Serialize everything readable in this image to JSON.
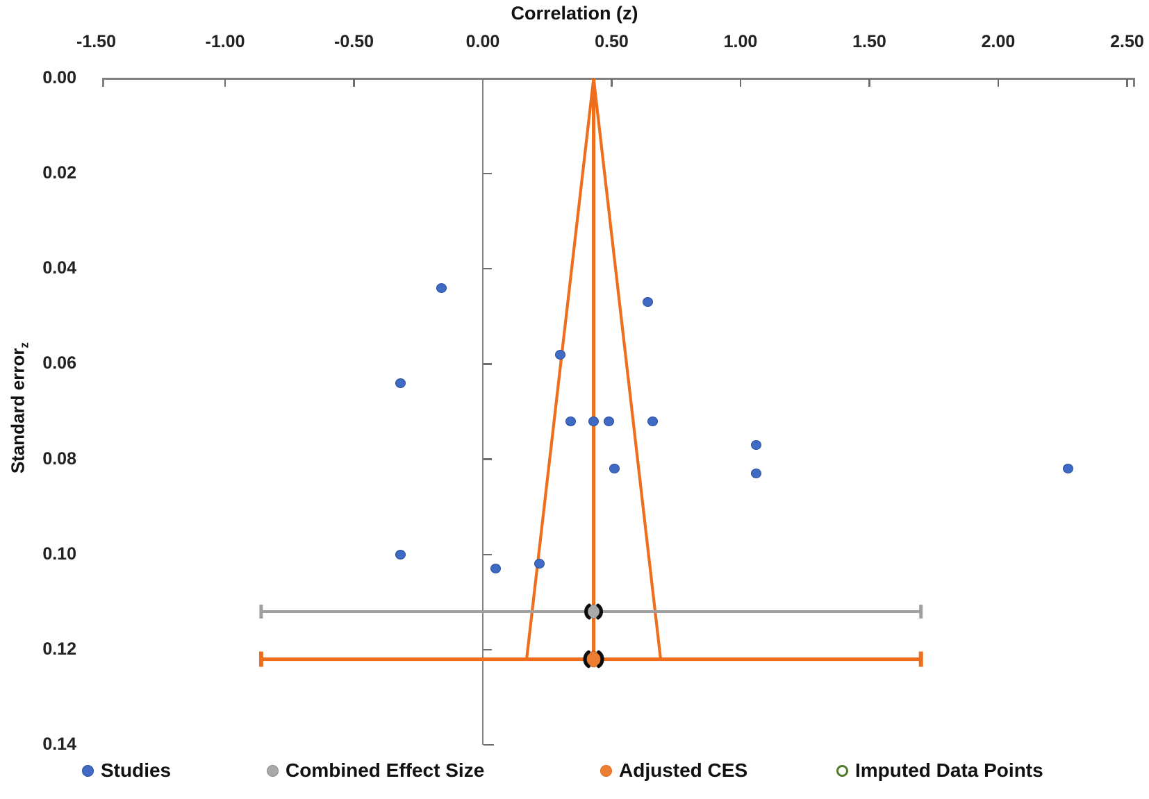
{
  "title_top": "Correlation (z)",
  "y_axis_title": {
    "main": "Standard error",
    "subscript": "z"
  },
  "legend": [
    {
      "label": "Studies",
      "marker": "filled",
      "color": "#3F6BC5",
      "edge": "#2A4F9E"
    },
    {
      "label": "Combined Effect Size",
      "marker": "filled",
      "color": "#A9A9A9",
      "edge": "#8C8C8C"
    },
    {
      "label": "Adjusted CES",
      "marker": "filled",
      "color": "#ED7D31",
      "edge": "#D96B1F"
    },
    {
      "label": "Imputed Data Points",
      "marker": "open",
      "color": "#FFFFFF",
      "edge": "#4F7B2B"
    }
  ],
  "chart_data": {
    "type": "scatter",
    "subtype": "funnel-plot",
    "title": "Correlation (z)",
    "xlabel": "Correlation (z)",
    "ylabel": "Standard error (z)",
    "xlim": [
      -1.5,
      2.5
    ],
    "ylim": [
      0,
      0.14
    ],
    "y_inverted": true,
    "x_ticks": [
      -1.5,
      -1.0,
      -0.5,
      0.0,
      0.5,
      1.0,
      1.5,
      2.0,
      2.5
    ],
    "x_tick_labels": [
      "-1.50",
      "-1.00",
      "-0.50",
      "0.00",
      "0.50",
      "1.00",
      "1.50",
      "2.00",
      "2.50"
    ],
    "y_ticks": [
      0.0,
      0.02,
      0.04,
      0.06,
      0.08,
      0.1,
      0.12,
      0.14
    ],
    "y_tick_labels": [
      "0.00",
      "0.02",
      "0.04",
      "0.06",
      "0.08",
      "0.10",
      "0.12",
      "0.14"
    ],
    "grid": false,
    "legend_position": "bottom",
    "series": [
      {
        "name": "Studies",
        "type": "scatter",
        "color": "#3F6BC5",
        "points_z_se": [
          [
            -0.16,
            0.044
          ],
          [
            0.64,
            0.047
          ],
          [
            0.3,
            0.058
          ],
          [
            -0.32,
            0.064
          ],
          [
            0.34,
            0.072
          ],
          [
            0.43,
            0.072
          ],
          [
            0.49,
            0.072
          ],
          [
            0.66,
            0.072
          ],
          [
            1.06,
            0.077
          ],
          [
            0.51,
            0.082
          ],
          [
            1.06,
            0.083
          ],
          [
            2.27,
            0.082
          ],
          [
            -0.32,
            0.1
          ],
          [
            0.22,
            0.102
          ],
          [
            0.05,
            0.103
          ]
        ]
      },
      {
        "name": "Combined Effect Size",
        "type": "point-with-interval",
        "color": "#A9A9A9",
        "value": 0.43,
        "se": 0.112,
        "ci_low": -0.86,
        "ci_high": 1.7
      },
      {
        "name": "Adjusted CES",
        "type": "point-with-interval",
        "color": "#ED7D31",
        "value": 0.43,
        "se": 0.122,
        "ci_low": -0.86,
        "ci_high": 1.7
      },
      {
        "name": "Imputed Data Points",
        "type": "scatter-open",
        "color": "#4F7B2B",
        "points_z_se": []
      }
    ],
    "funnel": {
      "apex_z": 0.43,
      "apex_se": 0.0,
      "bottom_se": 0.122,
      "bottom_left_z": 0.17,
      "bottom_right_z": 0.69,
      "center_line": true,
      "color": "#ED6F1E"
    }
  },
  "colors": {
    "axis": "#808080",
    "tick": "#6e6e6e",
    "text": "#111111",
    "studies": "#3F6BC5",
    "studies_edge": "#2A4F9E",
    "ces_gray": "#A0A0A0",
    "adjusted_orange": "#ED6F1E",
    "bracket_black": "#0d0d0d",
    "imputed_green": "#4F7B2B"
  }
}
